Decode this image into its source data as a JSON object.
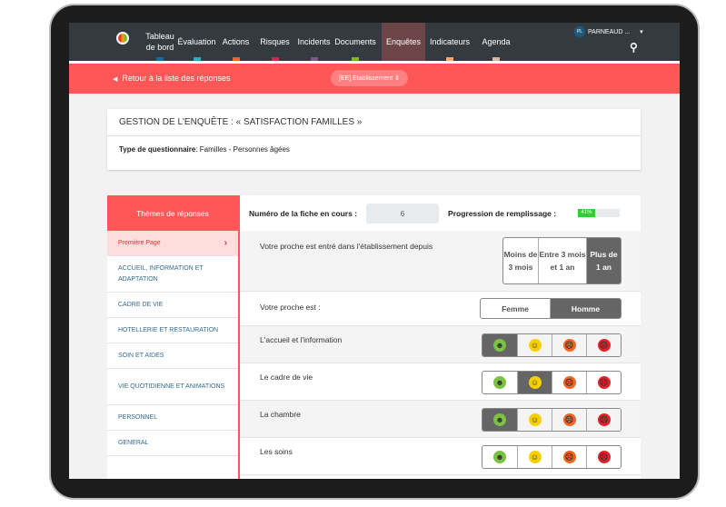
{
  "nav": {
    "items": [
      {
        "label": "Tableau de bord",
        "color": "#0f6aa0"
      },
      {
        "label": "Évaluation",
        "color": "#1fb3c4"
      },
      {
        "label": "Actions",
        "color": "#f26522"
      },
      {
        "label": "Risques",
        "color": "#d9234b"
      },
      {
        "label": "Incidents",
        "color": "#7b5a7e"
      },
      {
        "label": "Documents",
        "color": "#7cba17"
      },
      {
        "label": "Enquêtes",
        "color": "#ff5757",
        "active": true
      },
      {
        "label": "Indicateurs",
        "color": "#f9a665"
      },
      {
        "label": "Agenda",
        "color": "#d6b89e"
      }
    ],
    "user_initials": "PL",
    "user_name": "PARNEAUD ...",
    "caret": "▾",
    "search_icon": "⚲"
  },
  "subbar": {
    "back_label": "Retour à la liste des réponses",
    "select_value": "[EE] Etablissement"
  },
  "card": {
    "title": "GESTION DE L'ENQUÊTE : « SATISFACTION FAMILLES »",
    "type_label": "Type de questionnaire",
    "type_value": ": Familles - Personnes âgées"
  },
  "sidebar": {
    "header": "Thèmes de réponses",
    "items": [
      "Première Page",
      "ACCUEIL, INFORMATION ET ADAPTATION",
      "CADRE DE VIE",
      "HOTELLERIE ET RESTAURATION",
      "SOIN ET AIDES",
      "VIE QUOTIDIENNE ET ANIMATIONS",
      "PERSONNEL",
      "GENERAL"
    ]
  },
  "main": {
    "fiche_label": "Numéro de la fiche en cours :",
    "fiche_value": "6",
    "progress_label": "Progression de remplissage :",
    "progress_text": "41%",
    "progress": 41,
    "q1": {
      "label": "Votre proche est entré dans l'établissement depuis",
      "options": [
        "Moins de 3 mois",
        "Entre 3 mois et 1 an",
        "Plus de 1 an"
      ],
      "selected": 2
    },
    "q2": {
      "label": "Votre proche est :",
      "options": [
        "Femme",
        "Homme"
      ],
      "selected": 1
    },
    "ratings": [
      {
        "label": "L'accueil et l'information",
        "selected": 0
      },
      {
        "label": "Le cadre de vie",
        "selected": 1
      },
      {
        "label": "La chambre",
        "selected": 0
      },
      {
        "label": "Les soins",
        "selected": -1
      }
    ],
    "faces": [
      {
        "glyph": "☻",
        "color": "#7cc242"
      },
      {
        "glyph": "☺",
        "color": "#f5d000"
      },
      {
        "glyph": "☹",
        "color": "#f26522"
      },
      {
        "glyph": "☹",
        "color": "#e8202a"
      }
    ]
  }
}
